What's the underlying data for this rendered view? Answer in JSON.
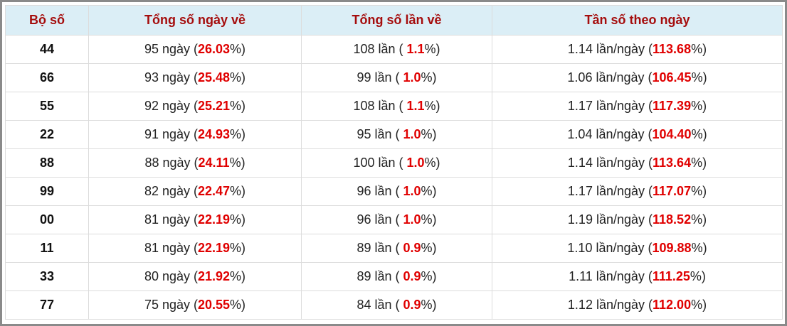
{
  "table": {
    "header": [
      "Bộ số",
      "Tổng số ngày về",
      "Tổng số lần về",
      "Tần số theo ngày"
    ],
    "rows": [
      [
        "44",
        [
          "95 ngày (",
          "26.03",
          "%)"
        ],
        [
          "108 lần ( ",
          "1.1",
          "%)"
        ],
        [
          "1.14 lần/ngày (",
          "113.68",
          "%)"
        ]
      ],
      [
        "66",
        [
          "93 ngày (",
          "25.48",
          "%)"
        ],
        [
          "99 lần ( ",
          "1.0",
          "%)"
        ],
        [
          "1.06 lần/ngày (",
          "106.45",
          "%)"
        ]
      ],
      [
        "55",
        [
          "92 ngày (",
          "25.21",
          "%)"
        ],
        [
          "108 lần ( ",
          "1.1",
          "%)"
        ],
        [
          "1.17 lần/ngày (",
          "117.39",
          "%)"
        ]
      ],
      [
        "22",
        [
          "91 ngày (",
          "24.93",
          "%)"
        ],
        [
          "95 lần ( ",
          "1.0",
          "%)"
        ],
        [
          "1.04 lần/ngày (",
          "104.40",
          "%)"
        ]
      ],
      [
        "88",
        [
          "88 ngày (",
          "24.11",
          "%)"
        ],
        [
          "100 lần ( ",
          "1.0",
          "%)"
        ],
        [
          "1.14 lần/ngày (",
          "113.64",
          "%)"
        ]
      ],
      [
        "99",
        [
          "82 ngày (",
          "22.47",
          "%)"
        ],
        [
          "96 lần ( ",
          "1.0",
          "%)"
        ],
        [
          "1.17 lần/ngày (",
          "117.07",
          "%)"
        ]
      ],
      [
        "00",
        [
          "81 ngày (",
          "22.19",
          "%)"
        ],
        [
          "96 lần ( ",
          "1.0",
          "%)"
        ],
        [
          "1.19 lần/ngày (",
          "118.52",
          "%)"
        ]
      ],
      [
        "11",
        [
          "81 ngày (",
          "22.19",
          "%)"
        ],
        [
          "89 lần ( ",
          "0.9",
          "%)"
        ],
        [
          "1.10 lần/ngày (",
          "109.88",
          "%)"
        ]
      ],
      [
        "33",
        [
          "80 ngày (",
          "21.92",
          "%)"
        ],
        [
          "89 lần ( ",
          "0.9",
          "%)"
        ],
        [
          "1.11 lần/ngày (",
          "111.25",
          "%)"
        ]
      ],
      [
        "77",
        [
          "75 ngày (",
          "20.55",
          "%)"
        ],
        [
          "84 lần ( ",
          "0.9",
          "%)"
        ],
        [
          "1.12 lần/ngày (",
          "112.00",
          "%)"
        ]
      ]
    ]
  }
}
